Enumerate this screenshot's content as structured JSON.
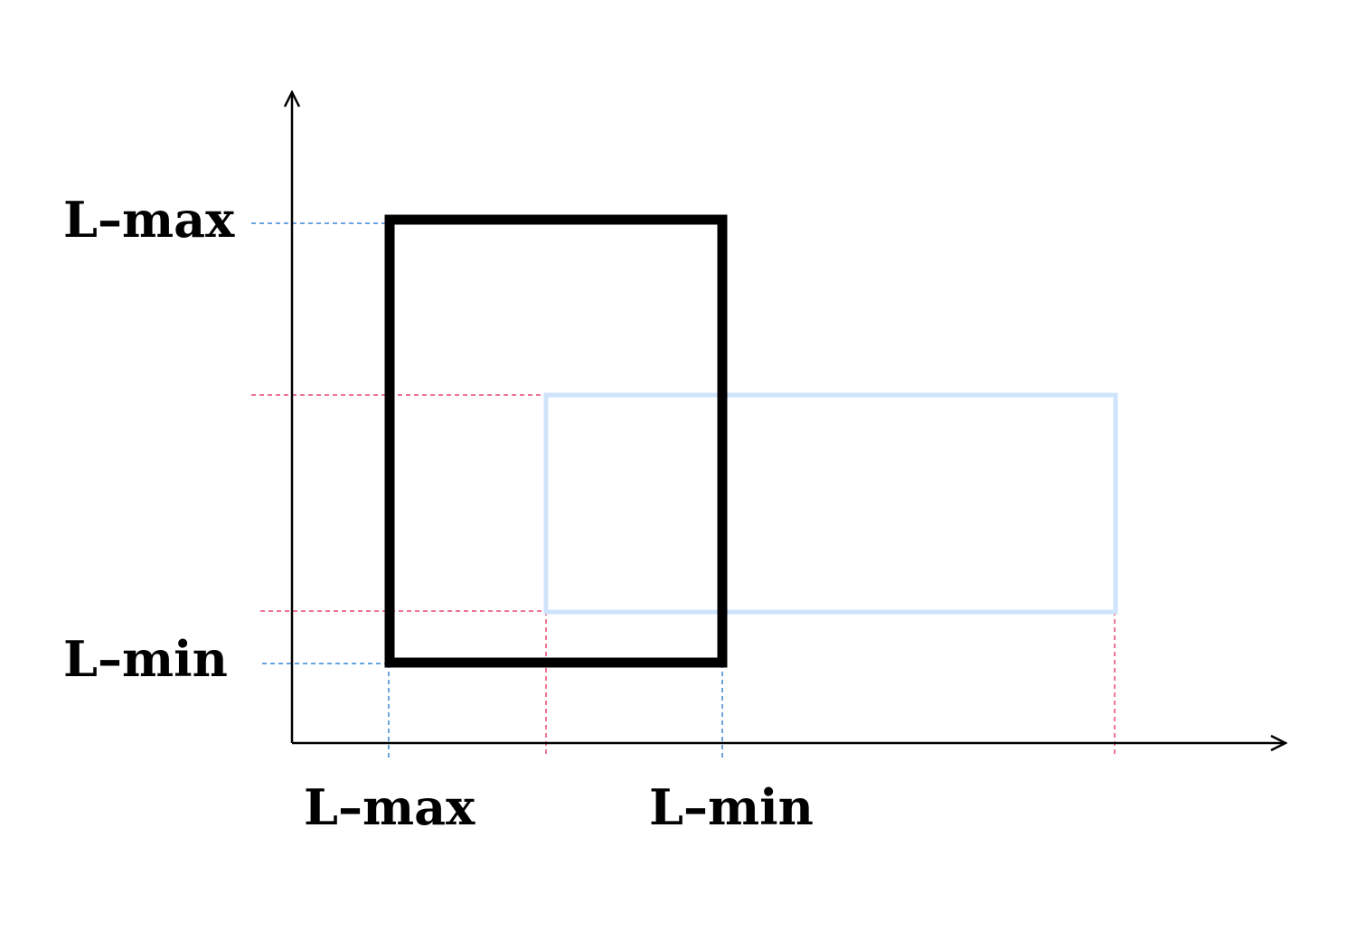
{
  "diagram": {
    "y_axis_labels": {
      "top": "L–max",
      "bottom": "L–min"
    },
    "x_axis_labels": {
      "left": "L–max",
      "right": "L–min"
    },
    "colors": {
      "axis": "#000000",
      "rect_primary": "#000000",
      "rect_secondary": "#cfe3fb",
      "guide_blue": "#3a86d6",
      "guide_red": "#e8466c"
    }
  }
}
